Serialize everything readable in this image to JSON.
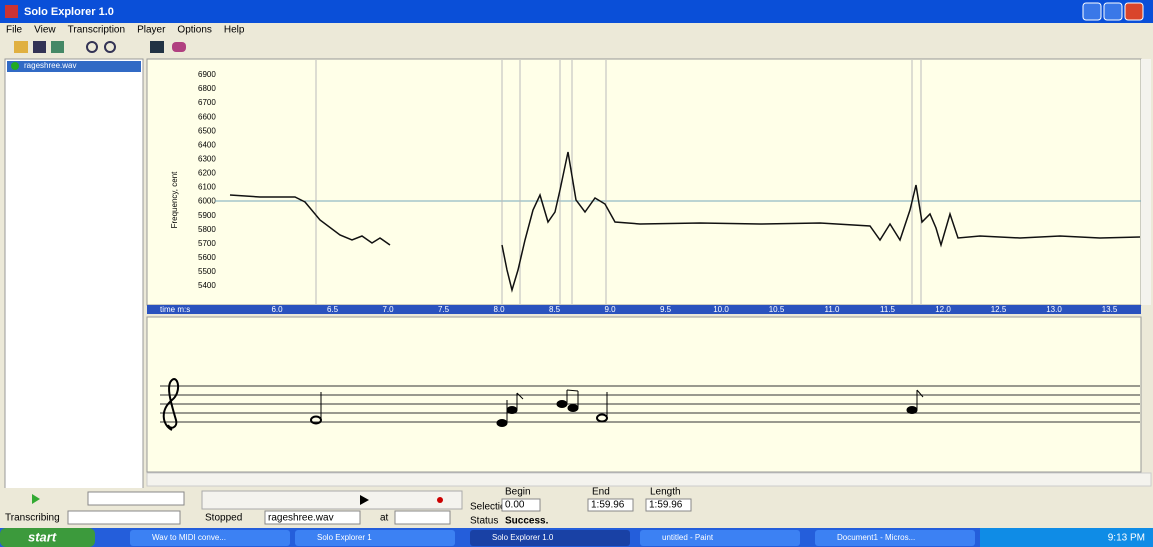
{
  "window": {
    "title": "Solo Explorer 1.0"
  },
  "menu": [
    "File",
    "View",
    "Transcription",
    "Player",
    "Options",
    "Help"
  ],
  "files": [
    "rageshree.wav"
  ],
  "pitch_view": {
    "y_axis_label": "Frequency, cent",
    "y_ticks": [
      6900,
      6800,
      6700,
      6600,
      6500,
      6400,
      6300,
      6200,
      6100,
      6000,
      5900,
      5800,
      5700,
      5600,
      5500,
      5400
    ]
  },
  "time_axis": {
    "label": "time m:s",
    "ticks": [
      "6.0",
      "6.5",
      "7.0",
      "7.5",
      "8.0",
      "8.5",
      "9.0",
      "9.5",
      "10.0",
      "10.5",
      "11.0",
      "11.5",
      "12.0",
      "12.5",
      "13.0",
      "13.5"
    ]
  },
  "controls": {
    "transcribing_label": "Transcribing",
    "player_status": "Stopped",
    "file": "rageshree.wav",
    "at_label": "at"
  },
  "selection": {
    "label": "Selection",
    "begin_label": "Begin",
    "begin": "0.00",
    "end_label": "End",
    "end": "1:59.96",
    "length_label": "Length",
    "length": "1:59.96",
    "status_label": "Status",
    "status": "Success."
  },
  "taskbar": {
    "start": "start",
    "items": [
      "Wav to MIDI conve...",
      "Solo Explorer 1",
      "Solo Explorer 1.0",
      "untitled - Paint",
      "Document1 - Micros..."
    ],
    "clock": "9:13 PM"
  }
}
